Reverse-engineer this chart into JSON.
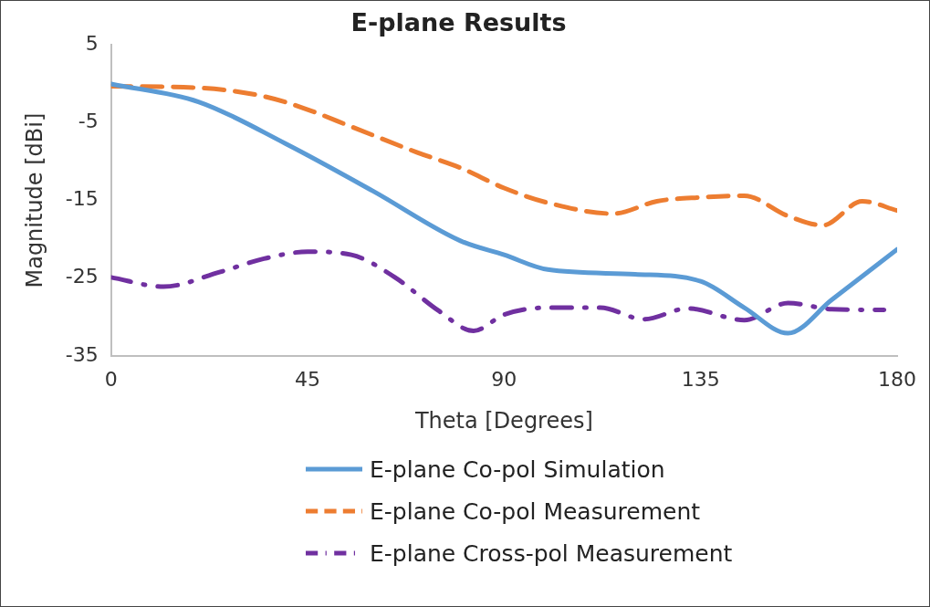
{
  "chart_data": {
    "type": "line",
    "title": "E-plane Results",
    "xlabel": "Theta [Degrees]",
    "ylabel": "Magnitude [dBi]",
    "xlim": [
      0,
      180
    ],
    "xticks": [
      0,
      45,
      90,
      135,
      180
    ],
    "ylim": [
      -35,
      5
    ],
    "yticks": [
      5,
      -5,
      -15,
      -25,
      -35
    ],
    "grid": false,
    "legend": "bottom",
    "marker": "none",
    "series": [
      {
        "name": "E-plane Co-pol Simulation",
        "color": "#5b9bd5",
        "line_style": "solid",
        "x": [
          0,
          20,
          40,
          60,
          80,
          90,
          100,
          120,
          135,
          145,
          155,
          165,
          180
        ],
        "values": [
          0,
          -2.3,
          -7.7,
          -13.8,
          -20.2,
          -22,
          -23.9,
          -24.5,
          -25.4,
          -28.8,
          -32.1,
          -27.8,
          -21.3
        ]
      },
      {
        "name": "E-plane Co-pol Measurement",
        "color": "#ed7d31",
        "line_style": "dashed",
        "x": [
          0,
          20,
          35,
          45,
          55,
          70,
          80,
          90,
          100,
          115,
          125,
          135,
          145,
          155,
          163,
          172,
          180
        ],
        "values": [
          -0.3,
          -0.5,
          -1.6,
          -3.3,
          -5.5,
          -8.8,
          -10.8,
          -13.4,
          -15.3,
          -16.7,
          -15.1,
          -14.6,
          -14.4,
          -17,
          -18.2,
          -15.1,
          -16.3
        ]
      },
      {
        "name": "E-plane Cross-pol Measurement",
        "color": "#7030a0",
        "line_style": "dashdot",
        "x": [
          0,
          12,
          25,
          35,
          45,
          55,
          65,
          75,
          83,
          90,
          100,
          112,
          122,
          132,
          145,
          155,
          165,
          177
        ],
        "values": [
          -24.9,
          -26.1,
          -24.2,
          -22.5,
          -21.6,
          -22,
          -24.9,
          -29.2,
          -31.8,
          -29.7,
          -28.8,
          -28.8,
          -30.3,
          -28.9,
          -30.4,
          -28.2,
          -29,
          -29.1
        ]
      }
    ]
  }
}
